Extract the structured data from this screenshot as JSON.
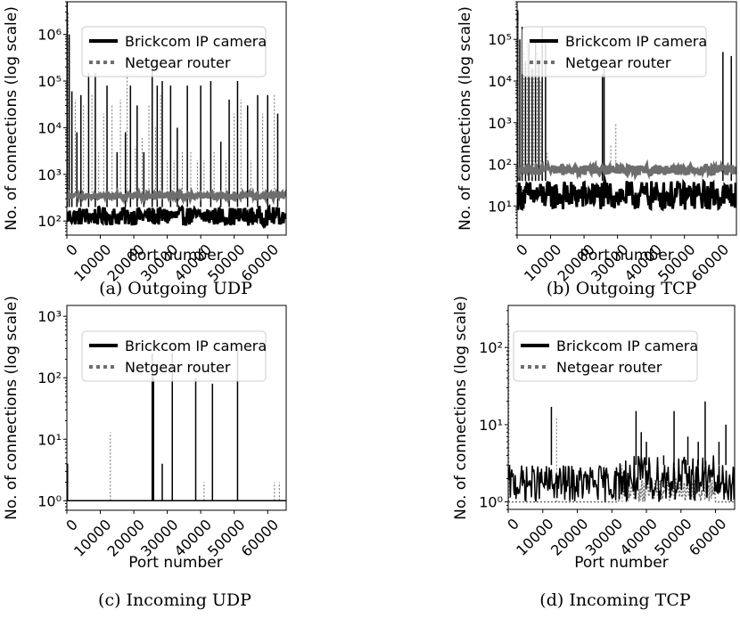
{
  "figure": {
    "panels": [
      {
        "caption": "(a) Outgoing UDP",
        "xlabel": "Port number",
        "ylabel": "No. of connections (log scale)"
      },
      {
        "caption": "(b) Outgoing TCP",
        "xlabel": "Port number",
        "ylabel": "No. of connections (log scale)"
      },
      {
        "caption": "(c) Incoming UDP",
        "xlabel": "Port number",
        "ylabel": "No. of connections (log scale)"
      },
      {
        "caption": "(d) Incoming TCP",
        "xlabel": "Port number",
        "ylabel": "No. of connections (log scale)"
      }
    ]
  },
  "colors": {
    "camera": "#000000",
    "router": "#6e6e6e"
  },
  "chart_data": [
    {
      "type": "line",
      "caption": "(a) Outgoing UDP",
      "xlabel": "Port number",
      "ylabel": "No. of connections (log scale)",
      "xlim": [
        0,
        65535
      ],
      "ylim": [
        50,
        5000000
      ],
      "yscale": "log",
      "xticks": [
        0,
        10000,
        20000,
        30000,
        40000,
        50000,
        60000
      ],
      "yticks": [
        {
          "value": 100,
          "label": "10²"
        },
        {
          "value": 1000,
          "label": "10³"
        },
        {
          "value": 10000,
          "label": "10⁴"
        },
        {
          "value": 100000,
          "label": "10⁵"
        },
        {
          "value": 1000000,
          "label": "10⁶"
        }
      ],
      "legend": "top-right",
      "series": [
        {
          "name": "Brickcom IP camera",
          "style": "solid",
          "baseline": [
            80,
            200
          ],
          "spikes": [
            [
              100,
              5000000
            ],
            [
              700,
              1000000
            ],
            [
              1500,
              60000
            ],
            [
              3000,
              8000
            ],
            [
              4200,
              50000
            ],
            [
              6500,
              150000
            ],
            [
              8500,
              150000
            ],
            [
              12000,
              80000
            ],
            [
              15000,
              3000
            ],
            [
              17500,
              8000
            ],
            [
              19000,
              80000
            ],
            [
              21000,
              30000
            ],
            [
              23000,
              3000
            ],
            [
              25500,
              250000
            ],
            [
              27000,
              80000
            ],
            [
              28500,
              100000
            ],
            [
              31000,
              80000
            ],
            [
              33000,
              10000
            ],
            [
              36000,
              80000
            ],
            [
              40000,
              80000
            ],
            [
              43000,
              100000
            ],
            [
              46000,
              5000
            ],
            [
              48500,
              40000
            ],
            [
              51000,
              100000
            ],
            [
              54000,
              30000
            ],
            [
              57000,
              50000
            ],
            [
              60000,
              50000
            ],
            [
              63000,
              20000
            ]
          ]
        },
        {
          "name": "Netgear router",
          "style": "dotted",
          "baseline": [
            300,
            400
          ],
          "spikes": [
            [
              400,
              3000000
            ],
            [
              2500,
              40000
            ],
            [
              5000,
              30000
            ],
            [
              7500,
              50000
            ],
            [
              9500,
              3000
            ],
            [
              11000,
              20000
            ],
            [
              13500,
              30000
            ],
            [
              16000,
              40000
            ],
            [
              18000,
              200000
            ],
            [
              20500,
              4000
            ],
            [
              22500,
              6000
            ],
            [
              24500,
              30000
            ],
            [
              26500,
              10000
            ],
            [
              28000,
              50000
            ],
            [
              30000,
              2000
            ],
            [
              32000,
              2000
            ],
            [
              34500,
              3000
            ],
            [
              37000,
              3000
            ],
            [
              39000,
              2000
            ],
            [
              41000,
              2000
            ],
            [
              44000,
              3000
            ],
            [
              47500,
              2000
            ],
            [
              50000,
              20000
            ],
            [
              52000,
              40000
            ],
            [
              55000,
              2000
            ],
            [
              58500,
              20000
            ],
            [
              62000,
              50000
            ]
          ]
        }
      ]
    },
    {
      "type": "line",
      "caption": "(b) Outgoing TCP",
      "xlabel": "Port number",
      "ylabel": "No. of connections (log scale)",
      "xlim": [
        0,
        65535
      ],
      "ylim": [
        2,
        800000
      ],
      "yscale": "log",
      "xticks": [
        0,
        10000,
        20000,
        30000,
        40000,
        50000,
        60000
      ],
      "yticks": [
        {
          "value": 10,
          "label": "10¹"
        },
        {
          "value": 100,
          "label": "10²"
        },
        {
          "value": 1000,
          "label": "10³"
        },
        {
          "value": 10000,
          "label": "10⁴"
        },
        {
          "value": 100000,
          "label": "10⁵"
        }
      ],
      "legend": "top-right",
      "series": [
        {
          "name": "Brickcom IP camera",
          "style": "solid",
          "baseline": [
            8,
            40
          ],
          "spikes": [
            [
              200,
              500000
            ],
            [
              800,
              100000
            ],
            [
              1500,
              200000
            ],
            [
              2500,
              30000
            ],
            [
              3500,
              80000
            ],
            [
              4500,
              20000
            ],
            [
              5500,
              100000
            ],
            [
              6500,
              30000
            ],
            [
              7500,
              200000
            ],
            [
              8500,
              100000
            ],
            [
              25500,
              15000
            ],
            [
              26000,
              20000
            ],
            [
              61500,
              50000
            ],
            [
              64000,
              40000
            ]
          ]
        },
        {
          "name": "Netgear router",
          "style": "dotted",
          "baseline": [
            55,
            95
          ],
          "spikes": [
            [
              300,
              300000
            ],
            [
              1000,
              100000
            ],
            [
              2000,
              50000
            ],
            [
              3000,
              100000
            ],
            [
              4000,
              30000
            ],
            [
              5000,
              20000
            ],
            [
              6000,
              50000
            ],
            [
              7000,
              10000
            ],
            [
              9000,
              200
            ],
            [
              28000,
              300
            ],
            [
              29500,
              1000
            ]
          ]
        }
      ]
    },
    {
      "type": "line",
      "caption": "(c) Incoming UDP",
      "xlabel": "Port number",
      "ylabel": "No. of connections (log scale)",
      "xlim": [
        0,
        65535
      ],
      "ylim": [
        0.7,
        1500
      ],
      "yscale": "log",
      "xticks": [
        0,
        10000,
        20000,
        30000,
        40000,
        50000,
        60000
      ],
      "yticks": [
        {
          "value": 1,
          "label": "10⁰"
        },
        {
          "value": 10,
          "label": "10¹"
        },
        {
          "value": 100,
          "label": "10²"
        },
        {
          "value": 1000,
          "label": "10³"
        }
      ],
      "legend": "top-right",
      "series": [
        {
          "name": "Brickcom IP camera",
          "style": "solid",
          "baseline": [
            1,
            1
          ],
          "spikes": [
            [
              200,
              4
            ],
            [
              25500,
              250
            ],
            [
              25900,
              100
            ],
            [
              28500,
              4
            ],
            [
              31500,
              250
            ],
            [
              38500,
              100
            ],
            [
              43500,
              80
            ],
            [
              51000,
              300
            ]
          ]
        },
        {
          "name": "Netgear router",
          "style": "dotted",
          "baseline": [
            1,
            1
          ],
          "spikes": [
            [
              13000,
              13
            ],
            [
              41000,
              2
            ],
            [
              62000,
              2
            ],
            [
              63500,
              2
            ]
          ]
        }
      ]
    },
    {
      "type": "line",
      "caption": "(d) Incoming TCP",
      "xlabel": "Port number",
      "ylabel": "No. of connections (log scale)",
      "xlim": [
        0,
        65535
      ],
      "ylim": [
        0.8,
        350
      ],
      "yscale": "log",
      "xticks": [
        0,
        10000,
        20000,
        30000,
        40000,
        50000,
        60000
      ],
      "yticks": [
        {
          "value": 1,
          "label": "10⁰"
        },
        {
          "value": 10,
          "label": "10¹"
        },
        {
          "value": 100,
          "label": "10²"
        }
      ],
      "legend": "top-right",
      "series": [
        {
          "name": "Brickcom IP camera",
          "style": "solid",
          "baseline": [
            1,
            3
          ],
          "dense_region": [
            32000,
            60000,
            1,
            4
          ],
          "spikes": [
            [
              12500,
              17
            ],
            [
              37000,
              15
            ],
            [
              38500,
              8
            ],
            [
              40000,
              6
            ],
            [
              45000,
              4
            ],
            [
              48000,
              15
            ],
            [
              52000,
              7
            ],
            [
              55000,
              6
            ],
            [
              57000,
              20
            ],
            [
              61000,
              6
            ],
            [
              63000,
              10
            ]
          ]
        },
        {
          "name": "Netgear router",
          "style": "dotted",
          "baseline": [
            1,
            1
          ],
          "dense_region": [
            32000,
            60000,
            1,
            2
          ],
          "spikes": [
            [
              200,
              200
            ],
            [
              14000,
              12
            ],
            [
              33000,
              3
            ]
          ]
        }
      ]
    }
  ]
}
